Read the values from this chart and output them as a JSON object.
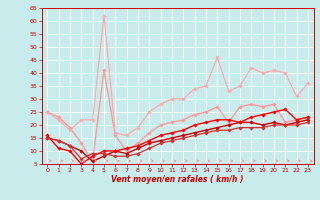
{
  "xlabel": "Vent moyen/en rafales ( km/h )",
  "xlim": [
    -0.5,
    23.5
  ],
  "ylim": [
    5,
    65
  ],
  "yticks": [
    5,
    10,
    15,
    20,
    25,
    30,
    35,
    40,
    45,
    50,
    55,
    60,
    65
  ],
  "xticks": [
    0,
    1,
    2,
    3,
    4,
    5,
    6,
    7,
    8,
    9,
    10,
    11,
    12,
    13,
    14,
    15,
    16,
    17,
    18,
    19,
    20,
    21,
    22,
    23
  ],
  "bg_color": "#c8ecec",
  "grid_color": "#ffffff",
  "arrow_color": "#ff8888",
  "lines": [
    {
      "x": [
        0,
        1,
        2,
        3,
        4,
        5,
        6,
        7,
        8,
        9,
        10,
        11,
        12,
        13,
        14,
        15,
        16,
        17,
        18,
        19,
        20,
        21,
        22,
        23
      ],
      "y": [
        25,
        23,
        19,
        13,
        6,
        41,
        16,
        10,
        13,
        17,
        20,
        21,
        22,
        24,
        25,
        27,
        21,
        27,
        28,
        27,
        28,
        21,
        22,
        23
      ],
      "color": "#ff9999",
      "marker": "D",
      "markersize": 1.8,
      "linewidth": 1.0
    },
    {
      "x": [
        0,
        1,
        2,
        3,
        4,
        5,
        6,
        7,
        8,
        9,
        10,
        11,
        12,
        13,
        14,
        15,
        16,
        17,
        18,
        19,
        20,
        21,
        22,
        23
      ],
      "y": [
        25,
        22,
        18,
        22,
        22,
        62,
        17,
        16,
        19,
        25,
        28,
        30,
        30,
        34,
        35,
        46,
        33,
        35,
        42,
        40,
        41,
        40,
        31,
        36
      ],
      "color": "#ffaaaa",
      "marker": "D",
      "markersize": 1.8,
      "linewidth": 0.9
    },
    {
      "x": [
        0,
        1,
        2,
        3,
        4,
        5,
        6,
        7,
        8,
        9,
        10,
        11,
        12,
        13,
        14,
        15,
        16,
        17,
        18,
        19,
        20,
        21,
        22,
        23
      ],
      "y": [
        15,
        14,
        12,
        10,
        6,
        8,
        10,
        9,
        11,
        13,
        14,
        15,
        16,
        17,
        18,
        19,
        20,
        21,
        21,
        20,
        21,
        20,
        21,
        22
      ],
      "color": "#cc0000",
      "marker": "D",
      "markersize": 1.8,
      "linewidth": 1.0
    },
    {
      "x": [
        0,
        1,
        2,
        3,
        4,
        5,
        6,
        7,
        8,
        9,
        10,
        11,
        12,
        13,
        14,
        15,
        16,
        17,
        18,
        19,
        20,
        21,
        22,
        23
      ],
      "y": [
        16,
        11,
        10,
        5,
        8,
        10,
        10,
        11,
        12,
        14,
        16,
        17,
        18,
        20,
        21,
        22,
        22,
        21,
        23,
        24,
        25,
        26,
        22,
        23
      ],
      "color": "#ff0000",
      "marker": "D",
      "markersize": 1.8,
      "linewidth": 1.0
    },
    {
      "x": [
        0,
        1,
        2,
        3,
        4,
        5,
        6,
        7,
        8,
        9,
        10,
        11,
        12,
        13,
        14,
        15,
        16,
        17,
        18,
        19,
        20,
        21,
        22,
        23
      ],
      "y": [
        15,
        14,
        12,
        7,
        9,
        9,
        8,
        8,
        9,
        11,
        13,
        14,
        15,
        16,
        17,
        18,
        18,
        19,
        19,
        19,
        20,
        20,
        20,
        21
      ],
      "color": "#cc3333",
      "marker": "D",
      "markersize": 1.8,
      "linewidth": 0.9
    }
  ]
}
